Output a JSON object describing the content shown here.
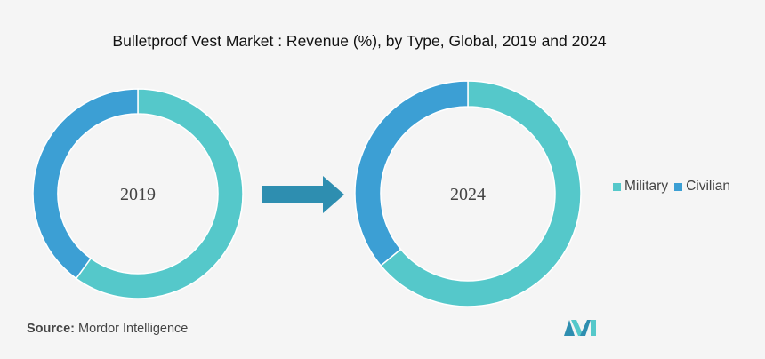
{
  "colors": {
    "military": "#55c8ca",
    "civilian": "#3c9fd4",
    "arrow": "#2e8eb0",
    "background": "#f5f5f5"
  },
  "chart_data": {
    "type": "pie",
    "style": "donut",
    "title": "Bulletproof Vest Market : Revenue (%), by Type, Global, 2019 and 2024",
    "legend": [
      {
        "name": "Military",
        "color": "#55c8ca"
      },
      {
        "name": "Civilian",
        "color": "#3c9fd4"
      }
    ],
    "legend_position": "right",
    "charts": [
      {
        "label": "2019",
        "slices": [
          {
            "name": "Military",
            "value": 60
          },
          {
            "name": "Civilian",
            "value": 40
          }
        ]
      },
      {
        "label": "2024",
        "slices": [
          {
            "name": "Military",
            "value": 64
          },
          {
            "name": "Civilian",
            "value": 36
          }
        ]
      }
    ]
  },
  "source": {
    "label": "Source:",
    "text": "Mordor Intelligence"
  },
  "logo": {
    "icon": "mordor-intelligence-logo"
  }
}
